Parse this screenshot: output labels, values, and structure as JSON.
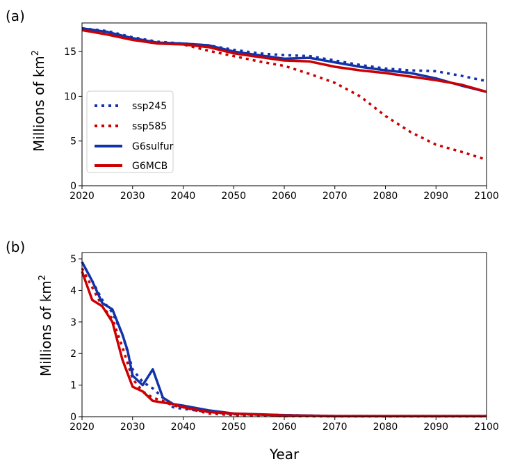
{
  "colors": {
    "ssp245": "#1133aa",
    "ssp585": "#cc0000",
    "G6sulfur": "#1133aa",
    "G6MCB": "#cc0000"
  },
  "chart_data": [
    {
      "type": "line",
      "panel_label": "(a)",
      "title": "",
      "xlabel": "",
      "ylabel_main": "Millions of km",
      "ylabel_sup": "2",
      "xlim": [
        2020,
        2100
      ],
      "ylim": [
        0,
        18.2
      ],
      "xticks": [
        2020,
        2030,
        2040,
        2050,
        2060,
        2070,
        2080,
        2090,
        2100
      ],
      "yticks": [
        0,
        5,
        10,
        15
      ],
      "legend": {
        "placement": "center-left",
        "entries": [
          "ssp245",
          "ssp585",
          "G6sulfur",
          "G6MCB"
        ]
      },
      "series": [
        {
          "name": "ssp245",
          "style": "dotted",
          "color": "#1133aa",
          "x": [
            2020,
            2025,
            2030,
            2035,
            2040,
            2045,
            2050,
            2055,
            2060,
            2065,
            2070,
            2075,
            2080,
            2085,
            2090,
            2095,
            2100
          ],
          "y": [
            17.6,
            17.3,
            16.6,
            16.1,
            15.9,
            15.7,
            15.2,
            14.8,
            14.6,
            14.5,
            14.0,
            13.5,
            13.1,
            12.9,
            12.8,
            12.3,
            11.7
          ]
        },
        {
          "name": "ssp585",
          "style": "dotted",
          "color": "#cc0000",
          "x": [
            2020,
            2025,
            2030,
            2035,
            2040,
            2045,
            2050,
            2055,
            2060,
            2065,
            2070,
            2075,
            2080,
            2085,
            2090,
            2095,
            2100
          ],
          "y": [
            17.5,
            17.1,
            16.5,
            16.0,
            15.8,
            15.1,
            14.5,
            13.9,
            13.4,
            12.5,
            11.5,
            10.0,
            7.8,
            6.0,
            4.6,
            3.8,
            2.9
          ]
        },
        {
          "name": "G6sulfur",
          "style": "solid",
          "color": "#1133aa",
          "x": [
            2020,
            2025,
            2030,
            2035,
            2040,
            2045,
            2050,
            2055,
            2060,
            2065,
            2070,
            2075,
            2080,
            2085,
            2090,
            2095,
            2100
          ],
          "y": [
            17.6,
            17.2,
            16.5,
            16.0,
            15.9,
            15.7,
            15.0,
            14.6,
            14.2,
            14.3,
            13.8,
            13.3,
            12.9,
            12.6,
            12.0,
            11.2,
            10.5
          ]
        },
        {
          "name": "G6MCB",
          "style": "solid",
          "color": "#cc0000",
          "x": [
            2020,
            2025,
            2030,
            2035,
            2040,
            2045,
            2050,
            2055,
            2060,
            2065,
            2070,
            2075,
            2080,
            2085,
            2090,
            2095,
            2100
          ],
          "y": [
            17.4,
            16.9,
            16.3,
            15.9,
            15.8,
            15.5,
            14.8,
            14.4,
            14.0,
            13.9,
            13.3,
            12.9,
            12.6,
            12.2,
            11.8,
            11.3,
            10.5
          ]
        }
      ]
    },
    {
      "type": "line",
      "panel_label": "(b)",
      "title": "",
      "xlabel": "Year",
      "ylabel_main": "Millions of km",
      "ylabel_sup": "2",
      "xlim": [
        2020,
        2100
      ],
      "ylim": [
        0,
        5.2
      ],
      "xticks": [
        2020,
        2030,
        2040,
        2050,
        2060,
        2070,
        2080,
        2090,
        2100
      ],
      "yticks": [
        0,
        1,
        2,
        3,
        4,
        5
      ],
      "series": [
        {
          "name": "ssp245",
          "style": "dotted",
          "color": "#1133aa",
          "x": [
            2020,
            2022,
            2024,
            2026,
            2028,
            2030,
            2032,
            2034,
            2036,
            2038,
            2040,
            2045,
            2050,
            2060,
            2070,
            2100
          ],
          "y": [
            4.9,
            4.3,
            3.7,
            3.3,
            2.6,
            1.5,
            1.1,
            0.9,
            0.6,
            0.3,
            0.25,
            0.15,
            0.08,
            0.05,
            0.02,
            0.02
          ]
        },
        {
          "name": "ssp585",
          "style": "dotted",
          "color": "#cc0000",
          "x": [
            2020,
            2022,
            2024,
            2026,
            2028,
            2030,
            2032,
            2034,
            2036,
            2038,
            2040,
            2045,
            2050,
            2060,
            2070,
            2100
          ],
          "y": [
            4.7,
            4.1,
            3.5,
            3.1,
            2.2,
            1.2,
            0.8,
            0.6,
            0.5,
            0.35,
            0.3,
            0.1,
            0.05,
            0.02,
            0.01,
            0.01
          ]
        },
        {
          "name": "G6sulfur",
          "style": "solid",
          "color": "#1133aa",
          "x": [
            2020,
            2022,
            2024,
            2026,
            2028,
            2029,
            2030,
            2032,
            2034,
            2036,
            2038,
            2040,
            2045,
            2050,
            2060,
            2070,
            2100
          ],
          "y": [
            4.9,
            4.3,
            3.6,
            3.4,
            2.6,
            2.1,
            1.3,
            1.0,
            1.5,
            0.6,
            0.4,
            0.35,
            0.2,
            0.1,
            0.05,
            0.02,
            0.02
          ]
        },
        {
          "name": "G6MCB",
          "style": "solid",
          "color": "#cc0000",
          "x": [
            2020,
            2022,
            2024,
            2026,
            2028,
            2030,
            2032,
            2034,
            2036,
            2038,
            2040,
            2045,
            2050,
            2060,
            2070,
            2100
          ],
          "y": [
            4.6,
            3.7,
            3.5,
            3.0,
            1.8,
            0.95,
            0.8,
            0.5,
            0.45,
            0.4,
            0.3,
            0.15,
            0.1,
            0.04,
            0.02,
            0.02
          ]
        }
      ]
    }
  ]
}
